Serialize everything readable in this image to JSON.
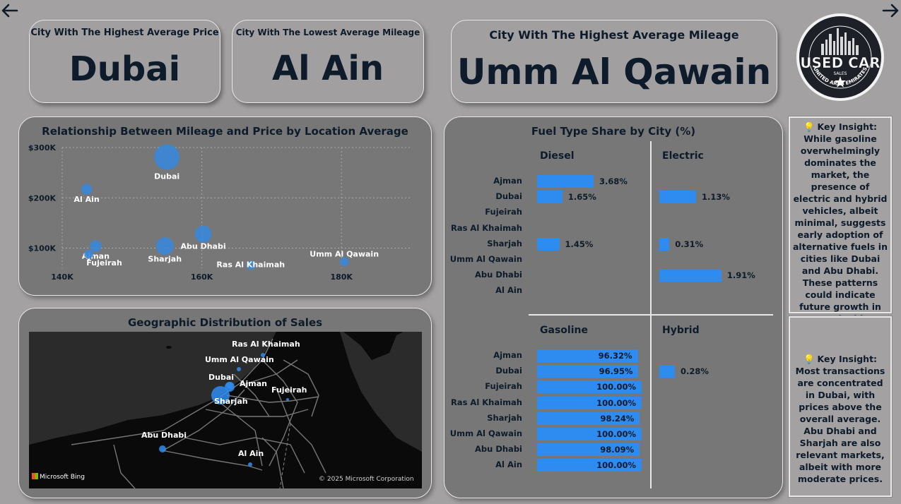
{
  "nav": {
    "back_icon": "arrow-left-icon",
    "next_icon": "arrow-right-icon"
  },
  "kpis": [
    {
      "label": "City With The Highest Average Price",
      "value": "Dubai"
    },
    {
      "label": "City With The Lowest Average Mileage",
      "value": "Al Ain"
    },
    {
      "label": "City With The Highest Average Mileage",
      "value": "Umm Al Qawain"
    }
  ],
  "logo": {
    "title": "USED CAR",
    "sub": "SALES",
    "ring": "UNITED ARAB EMIRATES"
  },
  "scatter": {
    "title": "Relationship Between Mileage and Price by Location Average"
  },
  "chart_data": {
    "type": "scatter",
    "title": "Relationship Between Mileage and Price by Location Average",
    "x_ticks": [
      "140K",
      "160K",
      "180K"
    ],
    "y_ticks": [
      "$100K",
      "$200K",
      "$300K"
    ],
    "xlim": [
      140000,
      190000
    ],
    "ylim": [
      60000,
      300000
    ],
    "points": [
      {
        "label": "Dubai",
        "x": 155000,
        "y": 281000,
        "size": 1.0
      },
      {
        "label": "Al Ain",
        "x": 143500,
        "y": 217000,
        "size": 0.1
      },
      {
        "label": "Abu Dhabi",
        "x": 160200,
        "y": 128000,
        "size": 0.35
      },
      {
        "label": "Sharjah",
        "x": 154700,
        "y": 104000,
        "size": 0.4
      },
      {
        "label": "Ajman",
        "x": 144800,
        "y": 104000,
        "size": 0.12
      },
      {
        "label": "Fujeirah",
        "x": 143800,
        "y": 88000,
        "size": 0.05
      },
      {
        "label": "Ras Al Khaimah",
        "x": 167000,
        "y": 66000,
        "size": 0.05
      },
      {
        "label": "Umm Al Qawain",
        "x": 180400,
        "y": 73000,
        "size": 0.05
      }
    ],
    "grid": true
  },
  "geo": {
    "title": "Geographic Distribution of Sales",
    "cities": [
      {
        "label": "Ras Al Khaimah"
      },
      {
        "label": "Umm Al Qawain"
      },
      {
        "label": "Dubai"
      },
      {
        "label": "Ajman"
      },
      {
        "label": "Fujeirah"
      },
      {
        "label": "Sharjah"
      },
      {
        "label": "Abu Dhabi"
      },
      {
        "label": "Al Ain"
      }
    ],
    "bing": "Microsoft Bing",
    "copyright": "© 2025 Microsoft Corporation"
  },
  "fuel": {
    "title": "Fuel Type Share by City (%)",
    "cities": [
      "Ajman",
      "Dubai",
      "Fujeirah",
      "Ras Al Khaimah",
      "Sharjah",
      "Umm Al Qawain",
      "Abu Dhabi",
      "Al Ain"
    ],
    "diesel": {
      "header": "Diesel",
      "values": [
        3.68,
        1.65,
        null,
        null,
        1.45,
        null,
        null,
        null
      ],
      "labels": [
        "3.68%",
        "1.65%",
        "",
        "",
        "1.45%",
        "",
        "",
        ""
      ]
    },
    "electric": {
      "header": "Electric",
      "values": [
        null,
        1.13,
        null,
        null,
        0.31,
        null,
        1.91,
        null
      ],
      "labels": [
        "",
        "1.13%",
        "",
        "",
        "0.31%",
        "",
        "1.91%",
        ""
      ]
    },
    "gasoline": {
      "header": "Gasoline",
      "values": [
        96.32,
        96.95,
        100,
        100,
        98.24,
        100,
        98.09,
        100
      ],
      "labels": [
        "96.32%",
        "96.95%",
        "100.00%",
        "100.00%",
        "98.24%",
        "100.00%",
        "98.09%",
        "100.00%"
      ]
    },
    "hybrid": {
      "header": "Hybrid",
      "values": [
        null,
        0.28,
        null,
        null,
        null,
        null,
        null,
        null
      ],
      "labels": [
        "",
        "0.28%",
        "",
        "",
        "",
        "",
        "",
        ""
      ]
    }
  },
  "insights": [
    "Key Insight: While gasoline overwhelmingly dominates the market, the presence of electric and hybrid vehicles, albeit minimal, suggests early adoption of alternative fuels in cities like Dubai and Abu Dhabi. These patterns could indicate future growth in sustainable mobility.",
    "Key Insight: Most transactions are concentrated in Dubai, with prices above the overall average. Abu Dhabi and Sharjah are also relevant markets, albeit with more moderate prices."
  ],
  "colors": {
    "bar": "#2e8cf0",
    "bubble": "#3a86d8",
    "panel": "#777777",
    "bg": "#a3a1a2",
    "text": "#0d1b2a"
  }
}
